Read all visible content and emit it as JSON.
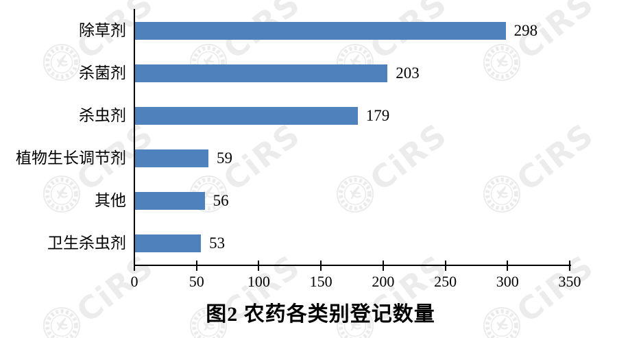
{
  "chart_data": {
    "type": "bar",
    "orientation": "horizontal",
    "title": "图2 农药各类别登记数量",
    "categories": [
      "除草剂",
      "杀菌剂",
      "杀虫剂",
      "植物生长调节剂",
      "其他",
      "卫生杀虫剂"
    ],
    "values": [
      298,
      203,
      179,
      59,
      56,
      53
    ],
    "xlabel": "",
    "ylabel": "",
    "xlim": [
      0,
      350
    ],
    "x_ticks": [
      0,
      50,
      100,
      150,
      200,
      250,
      300,
      350
    ],
    "grid": false,
    "legend": false,
    "value_labels_shown": true,
    "bar_color": "#4f81bd",
    "axis_color": "#000000"
  },
  "watermark": {
    "text": "CiRS",
    "color": "#e9e9e9"
  }
}
